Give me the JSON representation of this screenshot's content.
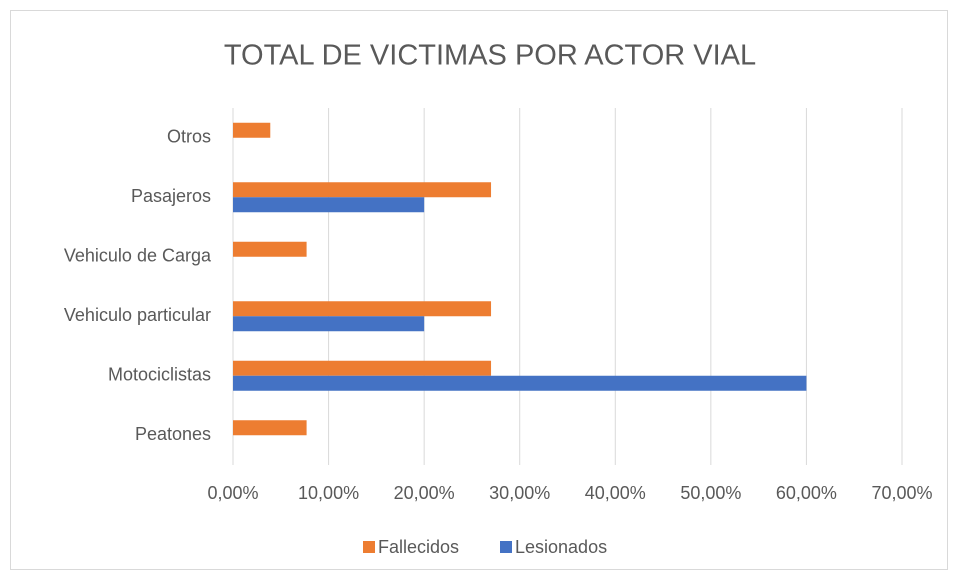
{
  "chart_data": {
    "type": "hbar",
    "title": "TOTAL DE VICTIMAS POR ACTOR VIAL",
    "categories": [
      "Peatones",
      "Motociclistas",
      "Vehiculo particular",
      "Vehiculo de Carga",
      "Pasajeros",
      "Otros"
    ],
    "series": [
      {
        "name": "Fallecidos",
        "color": "#ed7d31",
        "values": [
          7.7,
          27,
          27,
          7.7,
          27,
          3.9
        ]
      },
      {
        "name": "Lesionados",
        "color": "#4472c4",
        "values": [
          0,
          60,
          20,
          0,
          20,
          0
        ]
      }
    ],
    "xlim": [
      0,
      70
    ],
    "xticks": [
      {
        "value": 0,
        "label": "0,00%"
      },
      {
        "value": 10,
        "label": "10,00%"
      },
      {
        "value": 20,
        "label": "20,00%"
      },
      {
        "value": 30,
        "label": "30,00%"
      },
      {
        "value": 40,
        "label": "40,00%"
      },
      {
        "value": 50,
        "label": "50,00%"
      },
      {
        "value": 60,
        "label": "60,00%"
      },
      {
        "value": 70,
        "label": "70,00%"
      }
    ],
    "grid": true,
    "legend": "bottom"
  }
}
